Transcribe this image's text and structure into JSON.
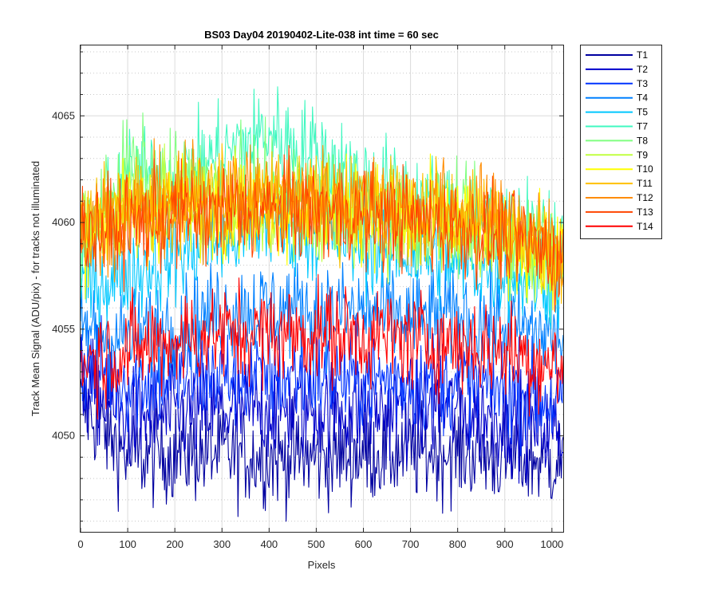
{
  "chart_data": {
    "type": "line",
    "title": "BS03 Day04 20190402-Lite-038 int time = 60 sec",
    "xlabel": "Pixels",
    "ylabel": "Track Mean Signal (ADU/pix) - for tracks not illuminated",
    "xlim": [
      0,
      1024
    ],
    "ylim": [
      4045.5,
      4068.3
    ],
    "x_ticks": [
      0,
      100,
      200,
      300,
      400,
      500,
      600,
      700,
      800,
      900,
      1000
    ],
    "y_ticks": [
      4050,
      4055,
      4060,
      4065
    ],
    "y_minor_ticks": [
      4046,
      4047,
      4048,
      4049,
      4051,
      4052,
      4053,
      4054,
      4056,
      4057,
      4058,
      4059,
      4061,
      4062,
      4063,
      4064,
      4066,
      4067,
      4068
    ],
    "grid": true,
    "minor_grid_y": true,
    "legend_position": "outside-right-top",
    "series": [
      {
        "name": "T1",
        "color": "#0000A0",
        "x": [
          0,
          100,
          200,
          300,
          400,
          500,
          600,
          700,
          800,
          900,
          1024
        ],
        "values": [
          4051.5,
          4049.0,
          4049.2,
          4049.2,
          4049.0,
          4049.0,
          4049.2,
          4049.2,
          4049.3,
          4049.0,
          4048.8
        ]
      },
      {
        "name": "T2",
        "color": "#0000CC",
        "x": [
          0,
          100,
          200,
          300,
          400,
          500,
          600,
          700,
          800,
          900,
          1024
        ],
        "values": [
          4052.5,
          4050.8,
          4051.0,
          4051.2,
          4051.3,
          4051.2,
          4051.2,
          4051.3,
          4051.2,
          4050.8,
          4050.2
        ]
      },
      {
        "name": "T3",
        "color": "#0033FF",
        "x": [
          0,
          100,
          200,
          300,
          400,
          500,
          600,
          700,
          800,
          900,
          1024
        ],
        "values": [
          4053.5,
          4052.5,
          4052.8,
          4052.8,
          4052.8,
          4052.8,
          4052.6,
          4052.6,
          4052.5,
          4052.2,
          4051.5
        ]
      },
      {
        "name": "T4",
        "color": "#0080FF",
        "x": [
          0,
          100,
          200,
          300,
          400,
          500,
          600,
          700,
          800,
          900,
          1024
        ],
        "values": [
          4055.0,
          4054.5,
          4055.2,
          4055.8,
          4056.0,
          4055.8,
          4055.8,
          4055.5,
          4055.5,
          4055.2,
          4054.5
        ]
      },
      {
        "name": "T5",
        "color": "#00C8FF",
        "x": [
          0,
          100,
          200,
          300,
          400,
          500,
          600,
          700,
          800,
          900,
          1024
        ],
        "values": [
          4057.0,
          4057.5,
          4058.5,
          4059.2,
          4060.0,
          4059.5,
          4059.0,
          4058.5,
          4058.2,
          4057.8,
          4057.0
        ]
      },
      {
        "name": "T7",
        "color": "#40F8C0",
        "x": [
          0,
          100,
          200,
          300,
          400,
          500,
          600,
          700,
          800,
          900,
          1024
        ],
        "values": [
          4058.5,
          4062.0,
          4062.0,
          4063.2,
          4064.2,
          4063.2,
          4062.0,
          4061.2,
          4060.5,
          4059.8,
          4058.5
        ]
      },
      {
        "name": "T8",
        "color": "#80FF80",
        "x": [
          0,
          100,
          200,
          300,
          400,
          500,
          600,
          700,
          800,
          900,
          1024
        ],
        "values": [
          4059.5,
          4062.5,
          4061.8,
          4061.5,
          4061.5,
          4061.0,
          4060.6,
          4060.3,
          4060.0,
          4059.5,
          4058.5
        ]
      },
      {
        "name": "T9",
        "color": "#C0FF40",
        "x": [
          0,
          100,
          200,
          300,
          400,
          500,
          600,
          700,
          800,
          900,
          1024
        ],
        "values": [
          4059.5,
          4061.0,
          4061.0,
          4060.8,
          4060.6,
          4060.4,
          4060.2,
          4060.0,
          4059.8,
          4059.2,
          4058.0
        ]
      },
      {
        "name": "T10",
        "color": "#FFFF00",
        "x": [
          0,
          100,
          200,
          300,
          400,
          500,
          600,
          700,
          800,
          900,
          1024
        ],
        "values": [
          4059.5,
          4060.5,
          4060.8,
          4060.8,
          4060.8,
          4060.6,
          4060.4,
          4060.2,
          4059.9,
          4059.4,
          4058.2
        ]
      },
      {
        "name": "T11",
        "color": "#FFC000",
        "x": [
          0,
          100,
          200,
          300,
          400,
          500,
          600,
          700,
          800,
          900,
          1024
        ],
        "values": [
          4059.8,
          4060.5,
          4060.8,
          4061.0,
          4061.0,
          4061.0,
          4060.8,
          4060.6,
          4060.3,
          4059.8,
          4058.5
        ]
      },
      {
        "name": "T12",
        "color": "#FF8C00",
        "x": [
          0,
          100,
          200,
          300,
          400,
          500,
          600,
          700,
          800,
          900,
          1024
        ],
        "values": [
          4059.8,
          4060.5,
          4061.0,
          4061.2,
          4061.2,
          4061.2,
          4061.0,
          4060.8,
          4060.5,
          4060.0,
          4058.8
        ]
      },
      {
        "name": "T13",
        "color": "#FF4500",
        "x": [
          0,
          100,
          200,
          300,
          400,
          500,
          600,
          700,
          800,
          900,
          1024
        ],
        "values": [
          4059.5,
          4059.8,
          4060.3,
          4060.5,
          4060.5,
          4060.5,
          4060.3,
          4060.1,
          4059.8,
          4059.3,
          4058.2
        ]
      },
      {
        "name": "T14",
        "color": "#FF0000",
        "x": [
          0,
          100,
          200,
          300,
          400,
          500,
          600,
          700,
          800,
          900,
          1024
        ],
        "values": [
          4053.5,
          4054.0,
          4054.5,
          4054.8,
          4054.8,
          4054.8,
          4054.7,
          4054.5,
          4054.3,
          4054.0,
          4053.2
        ]
      }
    ]
  }
}
